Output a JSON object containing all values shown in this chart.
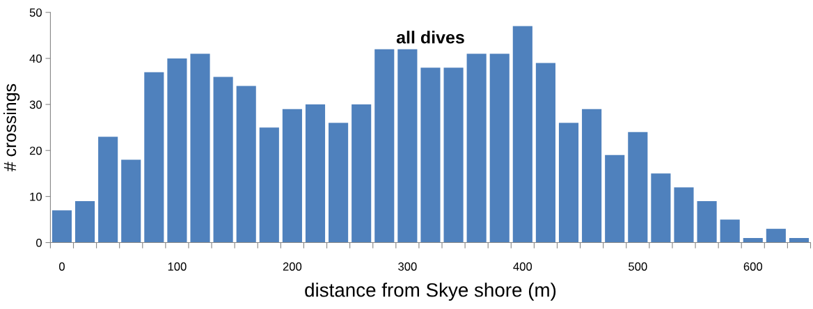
{
  "chart_data": {
    "type": "bar",
    "title": "all dives",
    "xlabel": "distance from Skye shore (m)",
    "ylabel": "# crossings",
    "categories": [
      "0",
      null,
      null,
      null,
      null,
      "100",
      null,
      null,
      null,
      null,
      "200",
      null,
      null,
      null,
      null,
      "300",
      null,
      null,
      null,
      null,
      "400",
      null,
      null,
      null,
      null,
      "500",
      null,
      null,
      null,
      null,
      "600",
      null,
      null
    ],
    "values": [
      7,
      9,
      23,
      18,
      37,
      40,
      41,
      36,
      34,
      25,
      29,
      30,
      26,
      30,
      42,
      42,
      38,
      38,
      41,
      41,
      47,
      39,
      26,
      29,
      19,
      24,
      15,
      12,
      9,
      5,
      1,
      3,
      1
    ],
    "color": "#4f81bd",
    "ylim": [
      0,
      50
    ],
    "yticks": [
      0,
      10,
      20,
      30,
      40,
      50
    ],
    "grid": false,
    "legend": false
  }
}
